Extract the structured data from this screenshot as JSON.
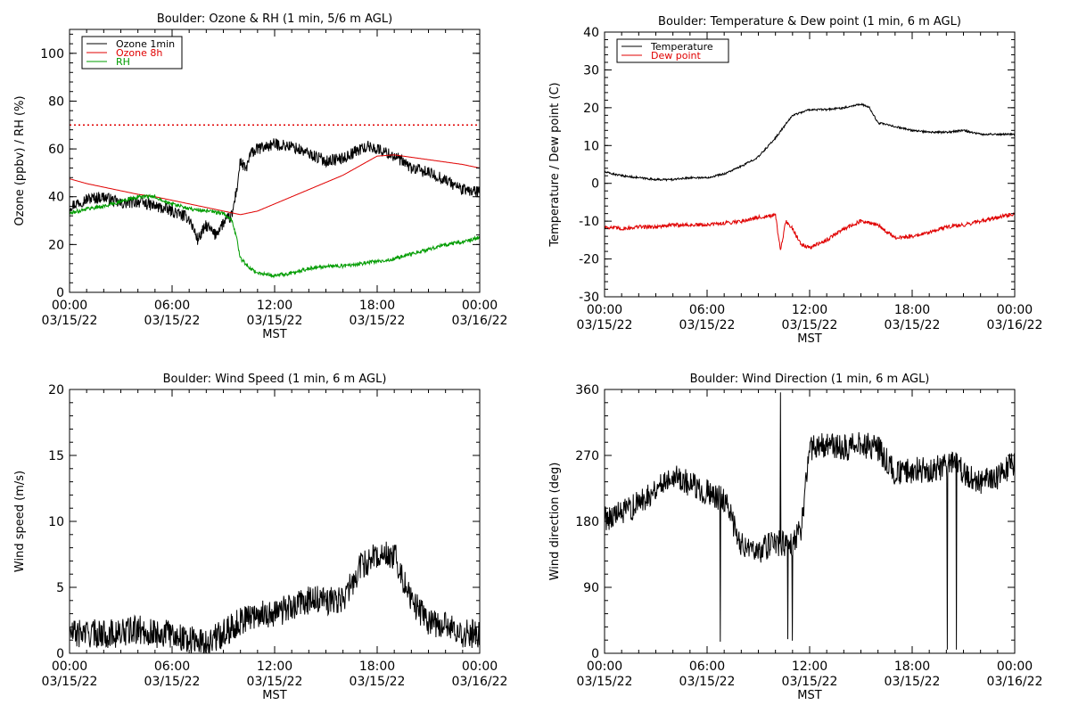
{
  "x_tick_times": [
    "00:00",
    "06:00",
    "12:00",
    "18:00",
    "00:00"
  ],
  "x_tick_dates": [
    "03/15/22",
    "03/15/22",
    "03/15/22",
    "03/15/22",
    "03/16/22"
  ],
  "x_axis_label": "MST",
  "chart_data": [
    {
      "type": "line",
      "title": "Boulder: Ozone & RH (1 min, 5/6 m AGL)",
      "xlabel": "MST",
      "ylabel": "Ozone (ppbv) / RH (%)",
      "xlim": [
        0,
        24
      ],
      "ylim": [
        0,
        110
      ],
      "yticks": [
        0,
        20,
        40,
        60,
        80,
        100
      ],
      "legend_position": "top-left",
      "reference_line": {
        "y": 70,
        "style": "dotted",
        "color": "#e00000"
      },
      "series": [
        {
          "name": "Ozone 1min",
          "color": "#000000",
          "noise": 2.5,
          "x": [
            0,
            1,
            2,
            3,
            4,
            5,
            6,
            7,
            7.5,
            8,
            8.5,
            9,
            9.5,
            9.8,
            10,
            10.3,
            10.6,
            11,
            12,
            13,
            14,
            15,
            16,
            17,
            17.5,
            18,
            19,
            20,
            21,
            22,
            23,
            24
          ],
          "y": [
            36,
            39,
            40,
            37,
            38,
            36,
            34,
            31,
            22,
            28,
            24,
            29,
            32,
            44,
            55,
            51,
            58,
            60,
            62,
            61,
            58,
            55,
            56,
            60,
            61,
            60,
            57,
            52,
            50,
            47,
            43,
            42
          ]
        },
        {
          "name": "Ozone 8h",
          "color": "#e00000",
          "noise": 0,
          "x": [
            0,
            1,
            2,
            3,
            4,
            5,
            6,
            7,
            8,
            9,
            10,
            11,
            12,
            13,
            14,
            15,
            16,
            17,
            18,
            19,
            20,
            21,
            22,
            23,
            24
          ],
          "y": [
            47.5,
            45.5,
            44,
            42.5,
            41,
            40,
            38.5,
            37,
            35.5,
            34,
            32.5,
            34,
            37,
            40,
            43,
            46,
            49,
            53,
            57,
            57.5,
            56.5,
            55.5,
            54.5,
            53.5,
            52
          ]
        },
        {
          "name": "RH",
          "color": "#009c00",
          "noise": 0.8,
          "x": [
            0,
            1,
            2,
            3,
            4,
            5,
            6,
            7,
            8,
            9,
            9.5,
            9.8,
            10,
            10.3,
            10.6,
            11,
            12,
            13,
            14,
            15,
            16,
            17,
            18,
            19,
            20,
            21,
            22,
            23,
            24
          ],
          "y": [
            33,
            35,
            36,
            38,
            40,
            40,
            37,
            35,
            34,
            33,
            30,
            22,
            14,
            12,
            10,
            8,
            7,
            8,
            10,
            11,
            11,
            12,
            13,
            14,
            16,
            18,
            20,
            21,
            23
          ]
        }
      ]
    },
    {
      "type": "line",
      "title": "Boulder: Temperature & Dew point (1 min, 6 m AGL)",
      "xlabel": "MST",
      "ylabel": "Temperature / Dew point (C)",
      "xlim": [
        0,
        24
      ],
      "ylim": [
        -30,
        40
      ],
      "yticks": [
        -30,
        -20,
        -10,
        0,
        10,
        20,
        30,
        40
      ],
      "legend_position": "top-left",
      "series": [
        {
          "name": "Temperature",
          "color": "#000000",
          "noise": 0.25,
          "x": [
            0,
            1,
            2,
            3,
            4,
            5,
            6,
            7,
            8,
            9,
            10,
            10.5,
            11,
            12,
            13,
            14,
            15,
            15.5,
            16,
            17,
            18,
            19,
            20,
            21,
            22,
            23,
            24
          ],
          "y": [
            3,
            2,
            1.5,
            1,
            1,
            1.5,
            1.5,
            2.5,
            4.5,
            7,
            12,
            15,
            18,
            19.5,
            19.5,
            20,
            21,
            20,
            16,
            15,
            14,
            13.5,
            13.5,
            14,
            13,
            13,
            13
          ]
        },
        {
          "name": "Dew point",
          "color": "#e00000",
          "noise": 0.5,
          "x": [
            0,
            1,
            2,
            3,
            4,
            5,
            6,
            7,
            8,
            9,
            10,
            10.3,
            10.6,
            11,
            11.5,
            12,
            13,
            14,
            15,
            16,
            17,
            18,
            19,
            20,
            21,
            22,
            23,
            24
          ],
          "y": [
            -11.5,
            -12,
            -11.5,
            -11.5,
            -11,
            -11,
            -11,
            -10.5,
            -10,
            -9,
            -8.5,
            -18,
            -10,
            -12,
            -16,
            -17,
            -15,
            -12,
            -10,
            -11,
            -14.5,
            -14,
            -13,
            -11.5,
            -11,
            -10,
            -9,
            -8
          ]
        }
      ]
    },
    {
      "type": "line",
      "title": "Boulder: Wind Speed (1 min, 6 m AGL)",
      "xlabel": "MST",
      "ylabel": "Wind speed (m/s)",
      "xlim": [
        0,
        24
      ],
      "ylim": [
        0,
        20
      ],
      "yticks": [
        0,
        5,
        10,
        15,
        20
      ],
      "series": [
        {
          "name": "",
          "color": "#000000",
          "noise": 1.1,
          "x": [
            0,
            1,
            2,
            3,
            4,
            5,
            6,
            7,
            8,
            9,
            10,
            11,
            12,
            13,
            14,
            15,
            16,
            17,
            18,
            19,
            20,
            21,
            22,
            23,
            24
          ],
          "y": [
            1.5,
            1.5,
            1.5,
            1.5,
            1.8,
            1.5,
            1.5,
            1,
            0.8,
            1.5,
            2.5,
            3,
            3,
            3.5,
            4,
            4,
            4,
            6.5,
            7.5,
            7.5,
            4,
            2.5,
            2,
            1.5,
            1.5
          ]
        }
      ]
    },
    {
      "type": "line",
      "title": "Boulder: Wind Direction (1 min, 6 m AGL)",
      "xlabel": "MST",
      "ylabel": "Wind direction (deg)",
      "xlim": [
        0,
        24
      ],
      "ylim": [
        0,
        360
      ],
      "yticks": [
        0,
        90,
        180,
        270,
        360
      ],
      "series": [
        {
          "name": "",
          "color": "#000000",
          "noise": 18,
          "x": [
            0,
            1,
            2,
            3,
            4,
            5,
            6,
            7,
            8,
            9,
            10,
            11,
            11.5,
            12,
            13,
            14,
            15,
            16,
            17,
            18,
            19,
            20,
            20.5,
            21,
            22,
            23,
            24
          ],
          "y": [
            185,
            190,
            205,
            225,
            245,
            230,
            220,
            210,
            150,
            140,
            150,
            150,
            170,
            280,
            285,
            280,
            285,
            280,
            245,
            250,
            250,
            255,
            265,
            245,
            235,
            240,
            260
          ]
        }
      ]
    }
  ]
}
